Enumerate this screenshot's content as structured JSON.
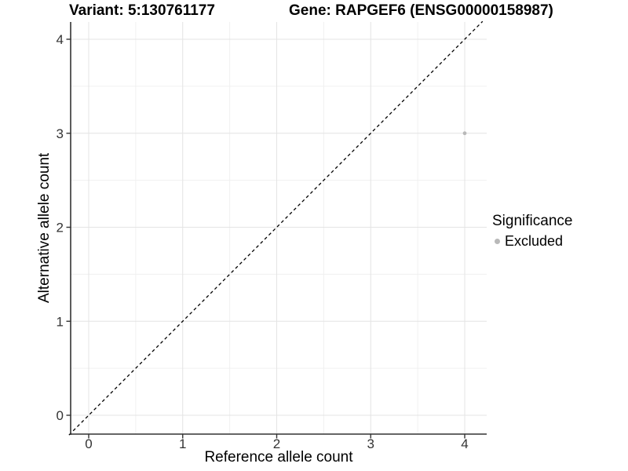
{
  "chart_data": {
    "type": "scatter",
    "titles": [
      {
        "text": "Variant: 5:130761177"
      },
      {
        "text": "Gene: RAPGEF6 (ENSG00000158987)"
      }
    ],
    "xlabel": "Reference allele count",
    "ylabel": "Alternative allele count",
    "x_ticks": [
      0,
      1,
      2,
      3,
      4
    ],
    "y_ticks": [
      0,
      1,
      2,
      3,
      4
    ],
    "xlim": [
      -0.21,
      4.23
    ],
    "ylim": [
      -0.21,
      4.19
    ],
    "grid": "major+minor",
    "minor_grid_step": 0.5,
    "points": [
      {
        "x": 4,
        "y": 3,
        "significance": "Excluded"
      }
    ],
    "identity_line": {
      "slope": 1,
      "intercept": 0,
      "style": "dashed",
      "color": "#000000"
    },
    "legend": {
      "title": "Significance",
      "position": "right",
      "entries": [
        {
          "label": "Excluded",
          "color": "#b9b9b9"
        }
      ]
    },
    "colors": {
      "background": "#ffffff",
      "point": "#b9b9b9",
      "grid_major": "#e4e4e4",
      "grid_minor": "#f0f0f0",
      "axis": "#333333",
      "tick_text": "#333333",
      "title_text": "#000000"
    }
  }
}
